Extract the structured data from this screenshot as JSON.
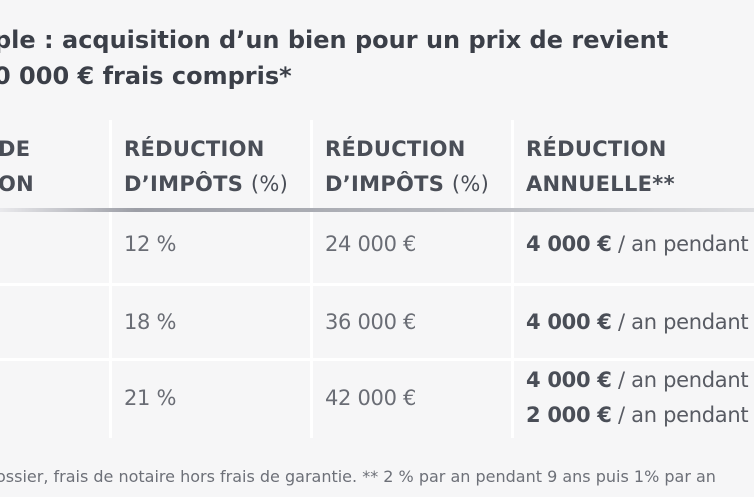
{
  "title": {
    "line1": "ple : acquisition d’un bien pour un prix de revient",
    "line2": "0 000 € frais compris*"
  },
  "table": {
    "headers": [
      {
        "line1": "DE",
        "line2": "ON",
        "line2_extra": ""
      },
      {
        "line1": "RÉDUCTION",
        "line2": "D’IMPÔTS ",
        "line2_extra": "(%)"
      },
      {
        "line1": "RÉDUCTION",
        "line2": "D’IMPÔTS ",
        "line2_extra": "(%)"
      },
      {
        "line1": "RÉDUCTION",
        "line2": "ANNUELLE**",
        "line2_extra": ""
      }
    ],
    "rows": [
      {
        "pct": "12 %",
        "amount": "24 000 €",
        "annual": [
          {
            "bold": "4 000 €",
            "rest": " / an pendant"
          }
        ]
      },
      {
        "pct": "18 %",
        "amount": "36 000 €",
        "annual": [
          {
            "bold": "4 000 €",
            "rest": " / an pendant"
          }
        ]
      },
      {
        "pct": "21 %",
        "amount": "42 000 €",
        "annual": [
          {
            "bold": "4 000 €",
            "rest": " / an pendant"
          },
          {
            "bold": "2 000 €",
            "rest": " / an pendant"
          }
        ]
      }
    ]
  },
  "footnote": "ossier, frais de notaire hors frais de garantie. ** 2 % par an pendant 9 ans puis 1% par an"
}
